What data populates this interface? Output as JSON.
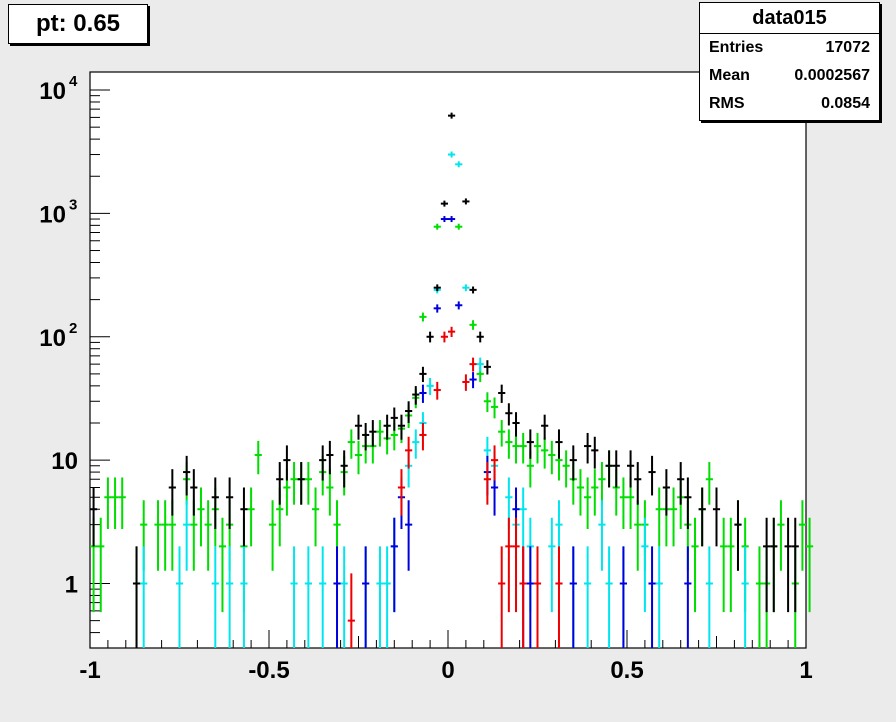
{
  "title": "pt: 0.65",
  "stats": {
    "name": "data015",
    "rows": [
      {
        "label": "Entries",
        "value": "17072"
      },
      {
        "label": "Mean",
        "value": "0.0002567"
      },
      {
        "label": "RMS",
        "value": "0.0854"
      }
    ]
  },
  "chart_data": {
    "type": "scatter",
    "xlim": [
      -1,
      1
    ],
    "ylim": [
      0.3,
      14000
    ],
    "log_y": true,
    "grid": false,
    "x_ticks": [
      "-1",
      "-0.5",
      "0",
      "0.5",
      "1"
    ],
    "y_ticks": [
      {
        "value": 10000,
        "label": "10",
        "exp": "4"
      },
      {
        "value": 1000,
        "label": "10",
        "exp": "3"
      },
      {
        "value": 100,
        "label": "10",
        "exp": "2"
      },
      {
        "value": 10,
        "label": "10",
        "exp": ""
      },
      {
        "value": 1,
        "label": "1",
        "exp": ""
      }
    ],
    "series": [
      {
        "color": "#00dd00",
        "points": [
          [
            -0.99,
            2
          ],
          [
            -0.97,
            2
          ],
          [
            -0.95,
            5
          ],
          [
            -0.93,
            5
          ],
          [
            -0.91,
            5
          ],
          [
            -0.87,
            1
          ],
          [
            -0.85,
            3
          ],
          [
            -0.81,
            3
          ],
          [
            -0.79,
            3
          ],
          [
            -0.77,
            3
          ],
          [
            -0.73,
            7
          ],
          [
            -0.71,
            3
          ],
          [
            -0.69,
            4
          ],
          [
            -0.67,
            3
          ],
          [
            -0.65,
            4
          ],
          [
            -0.63,
            2
          ],
          [
            -0.61,
            3
          ],
          [
            -0.57,
            2
          ],
          [
            -0.55,
            4
          ],
          [
            -0.53,
            11
          ],
          [
            -0.49,
            3
          ],
          [
            -0.47,
            4
          ],
          [
            -0.45,
            6
          ],
          [
            -0.43,
            7
          ],
          [
            -0.41,
            7
          ],
          [
            -0.39,
            7
          ],
          [
            -0.37,
            4
          ],
          [
            -0.35,
            8
          ],
          [
            -0.33,
            6
          ],
          [
            -0.31,
            3
          ],
          [
            -0.29,
            8
          ],
          [
            -0.27,
            14
          ],
          [
            -0.25,
            11
          ],
          [
            -0.23,
            13
          ],
          [
            -0.21,
            13
          ],
          [
            -0.19,
            17
          ],
          [
            -0.17,
            15
          ],
          [
            -0.15,
            16
          ],
          [
            -0.13,
            18
          ],
          [
            -0.11,
            23
          ],
          [
            -0.09,
            32
          ],
          [
            -0.07,
            145
          ],
          [
            -0.03,
            780
          ],
          [
            0.03,
            780
          ],
          [
            0.07,
            125
          ],
          [
            0.09,
            50
          ],
          [
            0.11,
            30
          ],
          [
            0.13,
            27
          ],
          [
            0.15,
            17
          ],
          [
            0.17,
            14
          ],
          [
            0.19,
            13
          ],
          [
            0.21,
            13
          ],
          [
            0.23,
            9
          ],
          [
            0.25,
            13
          ],
          [
            0.27,
            12
          ],
          [
            0.29,
            11
          ],
          [
            0.31,
            10
          ],
          [
            0.33,
            9
          ],
          [
            0.35,
            7
          ],
          [
            0.37,
            6
          ],
          [
            0.39,
            5
          ],
          [
            0.41,
            6
          ],
          [
            0.43,
            7
          ],
          [
            0.45,
            9
          ],
          [
            0.47,
            6
          ],
          [
            0.49,
            5
          ],
          [
            0.51,
            5
          ],
          [
            0.53,
            3
          ],
          [
            0.55,
            3
          ],
          [
            0.59,
            4
          ],
          [
            0.61,
            4
          ],
          [
            0.63,
            4
          ],
          [
            0.65,
            5
          ],
          [
            0.67,
            3
          ],
          [
            0.69,
            2
          ],
          [
            0.71,
            4
          ],
          [
            0.73,
            7
          ],
          [
            0.77,
            2
          ],
          [
            0.79,
            2
          ],
          [
            0.81,
            3
          ],
          [
            0.83,
            2
          ],
          [
            0.87,
            1
          ],
          [
            0.89,
            1
          ],
          [
            0.91,
            2
          ],
          [
            0.93,
            3
          ],
          [
            0.97,
            1
          ],
          [
            0.99,
            3
          ],
          [
            1.01,
            2
          ]
        ]
      },
      {
        "color": "#00e5ee",
        "points": [
          [
            -0.85,
            1
          ],
          [
            -0.75,
            1
          ],
          [
            -0.73,
            3
          ],
          [
            -0.65,
            1
          ],
          [
            -0.61,
            1
          ],
          [
            -0.57,
            1
          ],
          [
            -0.43,
            1
          ],
          [
            -0.39,
            1
          ],
          [
            -0.35,
            1
          ],
          [
            -0.29,
            1
          ],
          [
            -0.23,
            1
          ],
          [
            -0.19,
            1
          ],
          [
            -0.17,
            1
          ],
          [
            -0.15,
            2
          ],
          [
            -0.11,
            9
          ],
          [
            -0.09,
            14
          ],
          [
            -0.07,
            20
          ],
          [
            -0.05,
            40
          ],
          [
            -0.03,
            240
          ],
          [
            0.01,
            3000
          ],
          [
            0.03,
            2500
          ],
          [
            0.05,
            250
          ],
          [
            0.09,
            60
          ],
          [
            0.11,
            12
          ],
          [
            0.13,
            9
          ],
          [
            0.17,
            5
          ],
          [
            0.19,
            3
          ],
          [
            0.21,
            4
          ],
          [
            0.23,
            2
          ],
          [
            0.29,
            2
          ],
          [
            0.31,
            3
          ],
          [
            0.35,
            1
          ],
          [
            0.39,
            1
          ],
          [
            0.43,
            3
          ],
          [
            0.45,
            1
          ],
          [
            0.49,
            1
          ],
          [
            0.55,
            2
          ],
          [
            0.59,
            1
          ],
          [
            0.73,
            1
          ],
          [
            0.83,
            1
          ]
        ]
      },
      {
        "color": "#000000",
        "points": [
          [
            -0.99,
            4
          ],
          [
            -0.87,
            1
          ],
          [
            -0.77,
            6
          ],
          [
            -0.73,
            8
          ],
          [
            -0.71,
            6
          ],
          [
            -0.65,
            5
          ],
          [
            -0.61,
            5
          ],
          [
            -0.57,
            4
          ],
          [
            -0.47,
            7
          ],
          [
            -0.45,
            10
          ],
          [
            -0.41,
            7
          ],
          [
            -0.35,
            10
          ],
          [
            -0.33,
            11
          ],
          [
            -0.29,
            9
          ],
          [
            -0.25,
            19
          ],
          [
            -0.23,
            16
          ],
          [
            -0.21,
            17
          ],
          [
            -0.17,
            19
          ],
          [
            -0.15,
            22
          ],
          [
            -0.13,
            19
          ],
          [
            -0.11,
            25
          ],
          [
            -0.09,
            34
          ],
          [
            -0.07,
            50
          ],
          [
            -0.05,
            100
          ],
          [
            -0.03,
            250
          ],
          [
            -0.01,
            1200
          ],
          [
            0.01,
            6200
          ],
          [
            0.05,
            1250
          ],
          [
            0.07,
            240
          ],
          [
            0.09,
            100
          ],
          [
            0.11,
            57
          ],
          [
            0.15,
            35
          ],
          [
            0.17,
            24
          ],
          [
            0.19,
            20
          ],
          [
            0.23,
            14
          ],
          [
            0.27,
            19
          ],
          [
            0.31,
            14
          ],
          [
            0.35,
            10
          ],
          [
            0.39,
            13
          ],
          [
            0.41,
            12
          ],
          [
            0.45,
            9
          ],
          [
            0.47,
            9
          ],
          [
            0.51,
            9
          ],
          [
            0.53,
            7
          ],
          [
            0.57,
            8
          ],
          [
            0.61,
            6
          ],
          [
            0.65,
            7
          ],
          [
            0.67,
            5
          ],
          [
            0.71,
            4
          ],
          [
            0.75,
            4
          ],
          [
            0.81,
            3
          ],
          [
            0.89,
            2
          ],
          [
            0.91,
            2
          ],
          [
            0.95,
            2
          ],
          [
            0.97,
            2
          ]
        ]
      },
      {
        "color": "#0000dd",
        "points": [
          [
            -0.31,
            1
          ],
          [
            -0.23,
            1
          ],
          [
            -0.15,
            2
          ],
          [
            -0.13,
            5
          ],
          [
            -0.11,
            3
          ],
          [
            -0.07,
            35
          ],
          [
            -0.03,
            170
          ],
          [
            -0.01,
            900
          ],
          [
            0.01,
            900
          ],
          [
            0.03,
            180
          ],
          [
            0.07,
            45
          ],
          [
            0.11,
            8
          ],
          [
            0.13,
            6
          ],
          [
            0.19,
            4
          ],
          [
            0.21,
            1
          ],
          [
            0.23,
            1
          ],
          [
            0.35,
            1
          ],
          [
            0.49,
            1
          ],
          [
            0.57,
            1
          ],
          [
            0.67,
            1
          ]
        ]
      },
      {
        "color": "#ee0000",
        "points": [
          [
            -0.27,
            0.5
          ],
          [
            -0.13,
            6
          ],
          [
            -0.11,
            12
          ],
          [
            -0.07,
            16
          ],
          [
            -0.03,
            37
          ],
          [
            -0.01,
            100
          ],
          [
            0.01,
            110
          ],
          [
            0.05,
            43
          ],
          [
            0.07,
            60
          ],
          [
            0.11,
            7
          ],
          [
            0.13,
            10
          ],
          [
            0.15,
            1
          ],
          [
            0.17,
            2
          ],
          [
            0.19,
            2
          ],
          [
            0.21,
            1
          ],
          [
            0.25,
            1
          ],
          [
            0.31,
            1
          ]
        ]
      }
    ]
  }
}
